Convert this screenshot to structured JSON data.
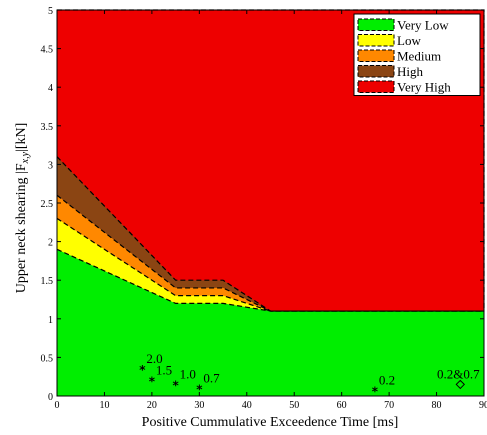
{
  "chart_data": {
    "type": "area",
    "xlabel": "Positive Cummulative Exceedence Time [ms]",
    "ylabel_main": "Upper neck shearing |F",
    "ylabel_sub": "x,y",
    "ylabel_tail": "|[kN]",
    "xlim": [
      0,
      90
    ],
    "ylim": [
      0,
      5
    ],
    "xticks": [
      "0",
      "10",
      "20",
      "30",
      "40",
      "50",
      "60",
      "70",
      "80",
      "90"
    ],
    "yticks": [
      "0",
      "0.5",
      "1",
      "1.5",
      "2",
      "2.5",
      "3",
      "3.5",
      "4",
      "4.5",
      "5"
    ],
    "legend_position": "top-right",
    "colors": {
      "very_low": "#00ee00",
      "low": "#ffff00",
      "medium": "#ff8800",
      "high": "#8b4513",
      "very_high": "#ee0000"
    },
    "series": [
      {
        "key": "very_low",
        "name": "Very Low",
        "x": [
          0,
          25,
          35,
          45,
          90
        ],
        "y": [
          1.9,
          1.2,
          1.2,
          1.1,
          1.1
        ]
      },
      {
        "key": "low",
        "name": "Low",
        "x": [
          0,
          25,
          35,
          45,
          90
        ],
        "y": [
          2.3,
          1.3,
          1.3,
          1.1,
          1.1
        ]
      },
      {
        "key": "medium",
        "name": "Medium",
        "x": [
          0,
          25,
          35,
          45,
          90
        ],
        "y": [
          2.6,
          1.4,
          1.4,
          1.1,
          1.1
        ]
      },
      {
        "key": "high",
        "name": "High",
        "x": [
          0,
          25,
          35,
          45,
          90
        ],
        "y": [
          3.1,
          1.5,
          1.5,
          1.1,
          1.1
        ]
      },
      {
        "key": "very_high",
        "name": "Very High",
        "x": [
          0,
          90
        ],
        "y": [
          5,
          5
        ]
      }
    ],
    "points": [
      {
        "x": 18,
        "y": 0.35,
        "label": "2.0",
        "marker": "star"
      },
      {
        "x": 20,
        "y": 0.2,
        "label": "1.5",
        "marker": "star"
      },
      {
        "x": 25,
        "y": 0.15,
        "label": "1.0",
        "marker": "star"
      },
      {
        "x": 30,
        "y": 0.1,
        "label": "0.7",
        "marker": "star"
      },
      {
        "x": 67,
        "y": 0.07,
        "label": "0.2",
        "marker": "star"
      },
      {
        "x": 85,
        "y": 0.15,
        "label": "0.2&0.7",
        "marker": "diamond"
      }
    ]
  }
}
